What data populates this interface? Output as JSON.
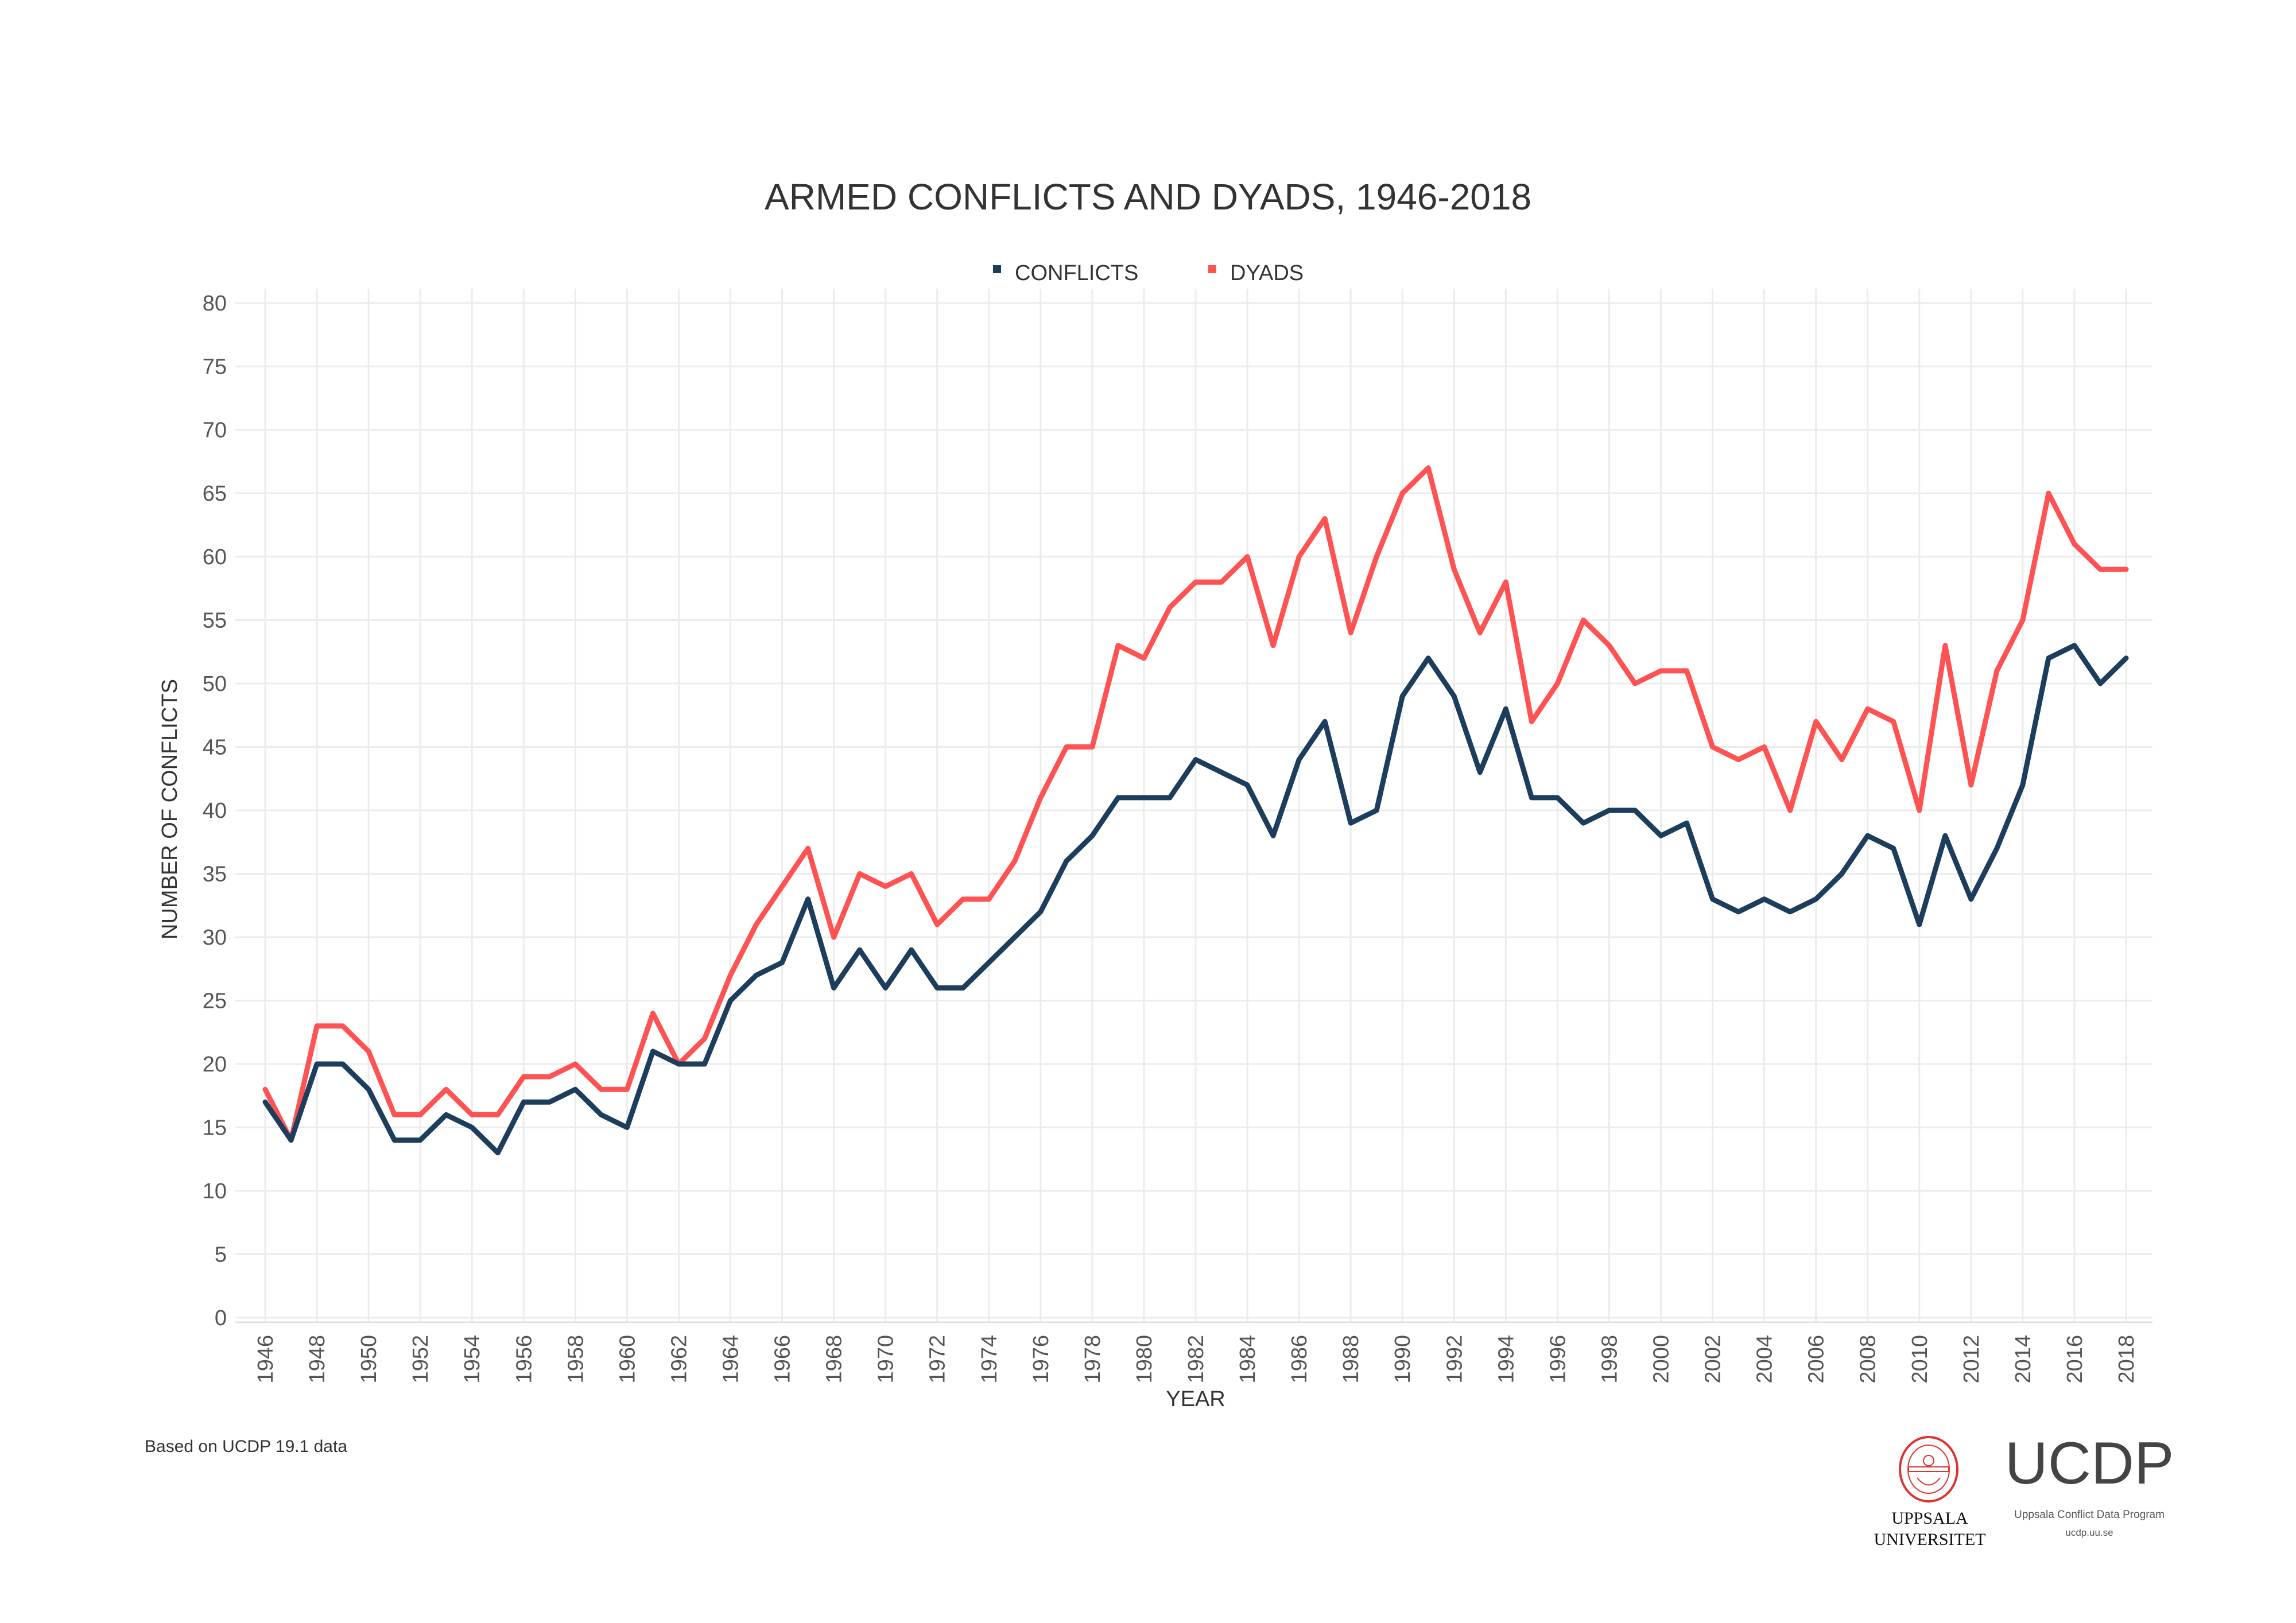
{
  "chart_data": {
    "type": "line",
    "title": "ARMED CONFLICTS AND DYADS, 1946-2018",
    "xlabel": "YEAR",
    "ylabel": "NUMBER OF CONFLICTS",
    "ylim": [
      0,
      80
    ],
    "yticks": [
      "0",
      "5",
      "10",
      "15",
      "20",
      "25",
      "30",
      "35",
      "40",
      "45",
      "50",
      "55",
      "60",
      "65",
      "70",
      "75",
      "80"
    ],
    "xticks": [
      "1946",
      "1948",
      "1950",
      "1952",
      "1954",
      "1956",
      "1958",
      "1960",
      "1962",
      "1964",
      "1966",
      "1968",
      "1970",
      "1972",
      "1974",
      "1976",
      "1978",
      "1980",
      "1982",
      "1984",
      "1986",
      "1988",
      "1990",
      "1992",
      "1994",
      "1996",
      "1998",
      "2000",
      "2002",
      "2004",
      "2006",
      "2008",
      "2010",
      "2012",
      "2014",
      "2016",
      "2018"
    ],
    "grid": true,
    "legend_position": "top-center",
    "x": [
      1946,
      1947,
      1948,
      1949,
      1950,
      1951,
      1952,
      1953,
      1954,
      1955,
      1956,
      1957,
      1958,
      1959,
      1960,
      1961,
      1962,
      1963,
      1964,
      1965,
      1966,
      1967,
      1968,
      1969,
      1970,
      1971,
      1972,
      1973,
      1974,
      1975,
      1976,
      1977,
      1978,
      1979,
      1980,
      1981,
      1982,
      1983,
      1984,
      1985,
      1986,
      1987,
      1988,
      1989,
      1990,
      1991,
      1992,
      1993,
      1994,
      1995,
      1996,
      1997,
      1998,
      1999,
      2000,
      2001,
      2002,
      2003,
      2004,
      2005,
      2006,
      2007,
      2008,
      2009,
      2010,
      2011,
      2012,
      2013,
      2014,
      2015,
      2016,
      2017,
      2018
    ],
    "series": [
      {
        "name": "CONFLICTS",
        "color": "#1d3d5c",
        "values": [
          17,
          14,
          20,
          20,
          18,
          14,
          14,
          16,
          15,
          13,
          17,
          17,
          18,
          16,
          15,
          21,
          20,
          20,
          25,
          27,
          28,
          33,
          26,
          29,
          26,
          29,
          26,
          26,
          28,
          30,
          32,
          36,
          38,
          41,
          41,
          41,
          44,
          43,
          42,
          38,
          44,
          47,
          39,
          40,
          49,
          52,
          49,
          43,
          48,
          41,
          41,
          39,
          40,
          40,
          38,
          39,
          33,
          32,
          33,
          32,
          33,
          35,
          38,
          37,
          31,
          38,
          33,
          37,
          42,
          52,
          53,
          50,
          52
        ]
      },
      {
        "name": "DYADS",
        "color": "#ff5252",
        "values": [
          18,
          14,
          23,
          23,
          21,
          16,
          16,
          18,
          16,
          16,
          19,
          19,
          20,
          18,
          18,
          24,
          20,
          22,
          27,
          31,
          34,
          37,
          30,
          35,
          34,
          35,
          31,
          33,
          33,
          36,
          41,
          45,
          45,
          53,
          52,
          56,
          58,
          58,
          60,
          53,
          60,
          63,
          54,
          60,
          65,
          67,
          59,
          54,
          58,
          47,
          50,
          55,
          53,
          50,
          51,
          51,
          45,
          44,
          45,
          40,
          47,
          44,
          48,
          47,
          40,
          53,
          42,
          51,
          55,
          65,
          61,
          59,
          59
        ]
      }
    ]
  },
  "footnote": "Based on UCDP 19.1 data",
  "logos": {
    "university": [
      "UPPSALA",
      "UNIVERSITET"
    ],
    "university_seal_text": "SIGILLUM ACADEMIAE UPSALIENSIS · GRATIA VERITAS NATURA",
    "program_acronym": "UCDP",
    "program_name": "Uppsala Conflict Data Program",
    "program_url": "ucdp.uu.se"
  }
}
